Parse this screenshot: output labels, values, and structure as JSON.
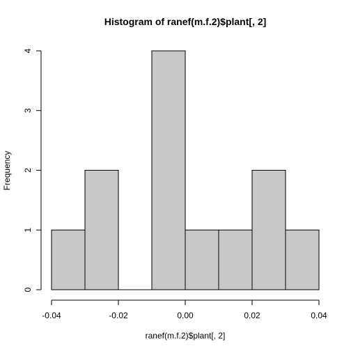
{
  "chart_data": {
    "type": "bar",
    "title": "Histogram of ranef(m.f.2)$plant[, 2]",
    "xlabel": "ranef(m.f.2)$plant[, 2]",
    "ylabel": "Frequency",
    "bins": [
      {
        "start": -0.04,
        "end": -0.03,
        "count": 1
      },
      {
        "start": -0.03,
        "end": -0.02,
        "count": 2
      },
      {
        "start": -0.02,
        "end": -0.01,
        "count": 0
      },
      {
        "start": -0.01,
        "end": 0.0,
        "count": 4
      },
      {
        "start": 0.0,
        "end": 0.01,
        "count": 1
      },
      {
        "start": 0.01,
        "end": 0.02,
        "count": 1
      },
      {
        "start": 0.02,
        "end": 0.03,
        "count": 2
      },
      {
        "start": 0.03,
        "end": 0.04,
        "count": 1
      }
    ],
    "xlim": [
      -0.04,
      0.04
    ],
    "ylim": [
      0,
      4
    ],
    "x_ticks": [
      "-0.04",
      "-0.02",
      "0.00",
      "0.02",
      "0.04"
    ],
    "y_ticks": [
      "0",
      "1",
      "2",
      "3",
      "4"
    ],
    "bar_fill": "#c8c8c8",
    "bar_stroke": "#000000",
    "grid": false
  }
}
